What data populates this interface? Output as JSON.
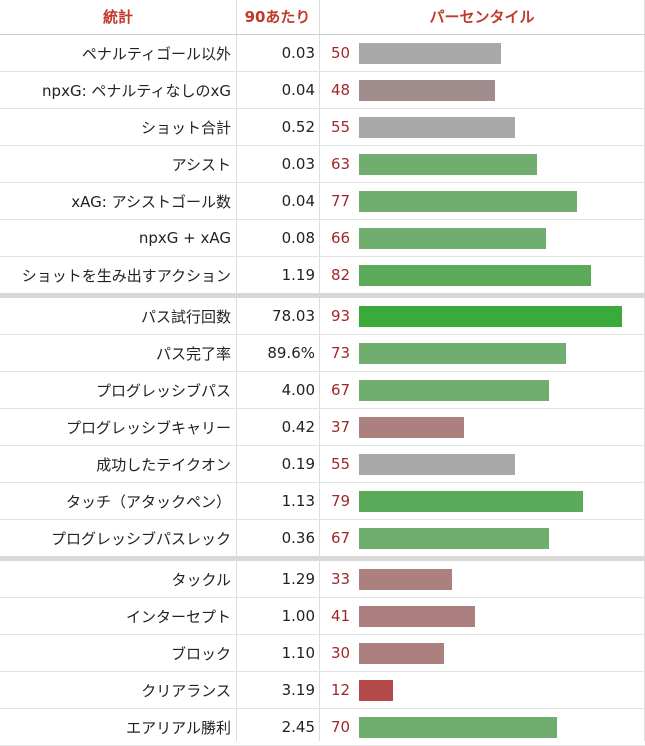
{
  "header": {
    "stat": "統計",
    "per90": "90あたり",
    "percentile": "パーセンタイル"
  },
  "colors": {
    "header_text": "#c0392b",
    "percentile_text": "#a0282a",
    "bar_scale": [
      "#b44b4b",
      "#a08c8c",
      "#a8a8a8",
      "#6fae6f",
      "#3aaa3a"
    ]
  },
  "chart_data": {
    "type": "bar",
    "orientation": "horizontal",
    "xlim": [
      0,
      100
    ],
    "categories": [
      "ペナルティゴール以外",
      "npxG: ペナルティなしのxG",
      "ショット合計",
      "アシスト",
      "xAG: アシストゴール数",
      "npxG + xAG",
      "ショットを生み出すアクション",
      "パス試行回数",
      "パス完了率",
      "プログレッシブパス",
      "プログレッシブキャリー",
      "成功したテイクオン",
      "タッチ（アタックペン）",
      "プログレッシブパスレック",
      "タックル",
      "インターセプト",
      "ブロック",
      "クリアランス",
      "エアリアル勝利"
    ],
    "per90": [
      "0.03",
      "0.04",
      "0.52",
      "0.03",
      "0.04",
      "0.08",
      "1.19",
      "78.03",
      "89.6%",
      "4.00",
      "0.42",
      "0.19",
      "1.13",
      "0.36",
      "1.29",
      "1.00",
      "1.10",
      "3.19",
      "2.45"
    ],
    "values": [
      50,
      48,
      55,
      63,
      77,
      66,
      82,
      93,
      73,
      67,
      37,
      55,
      79,
      67,
      33,
      41,
      30,
      12,
      70
    ],
    "groups": [
      7,
      7,
      5
    ]
  }
}
